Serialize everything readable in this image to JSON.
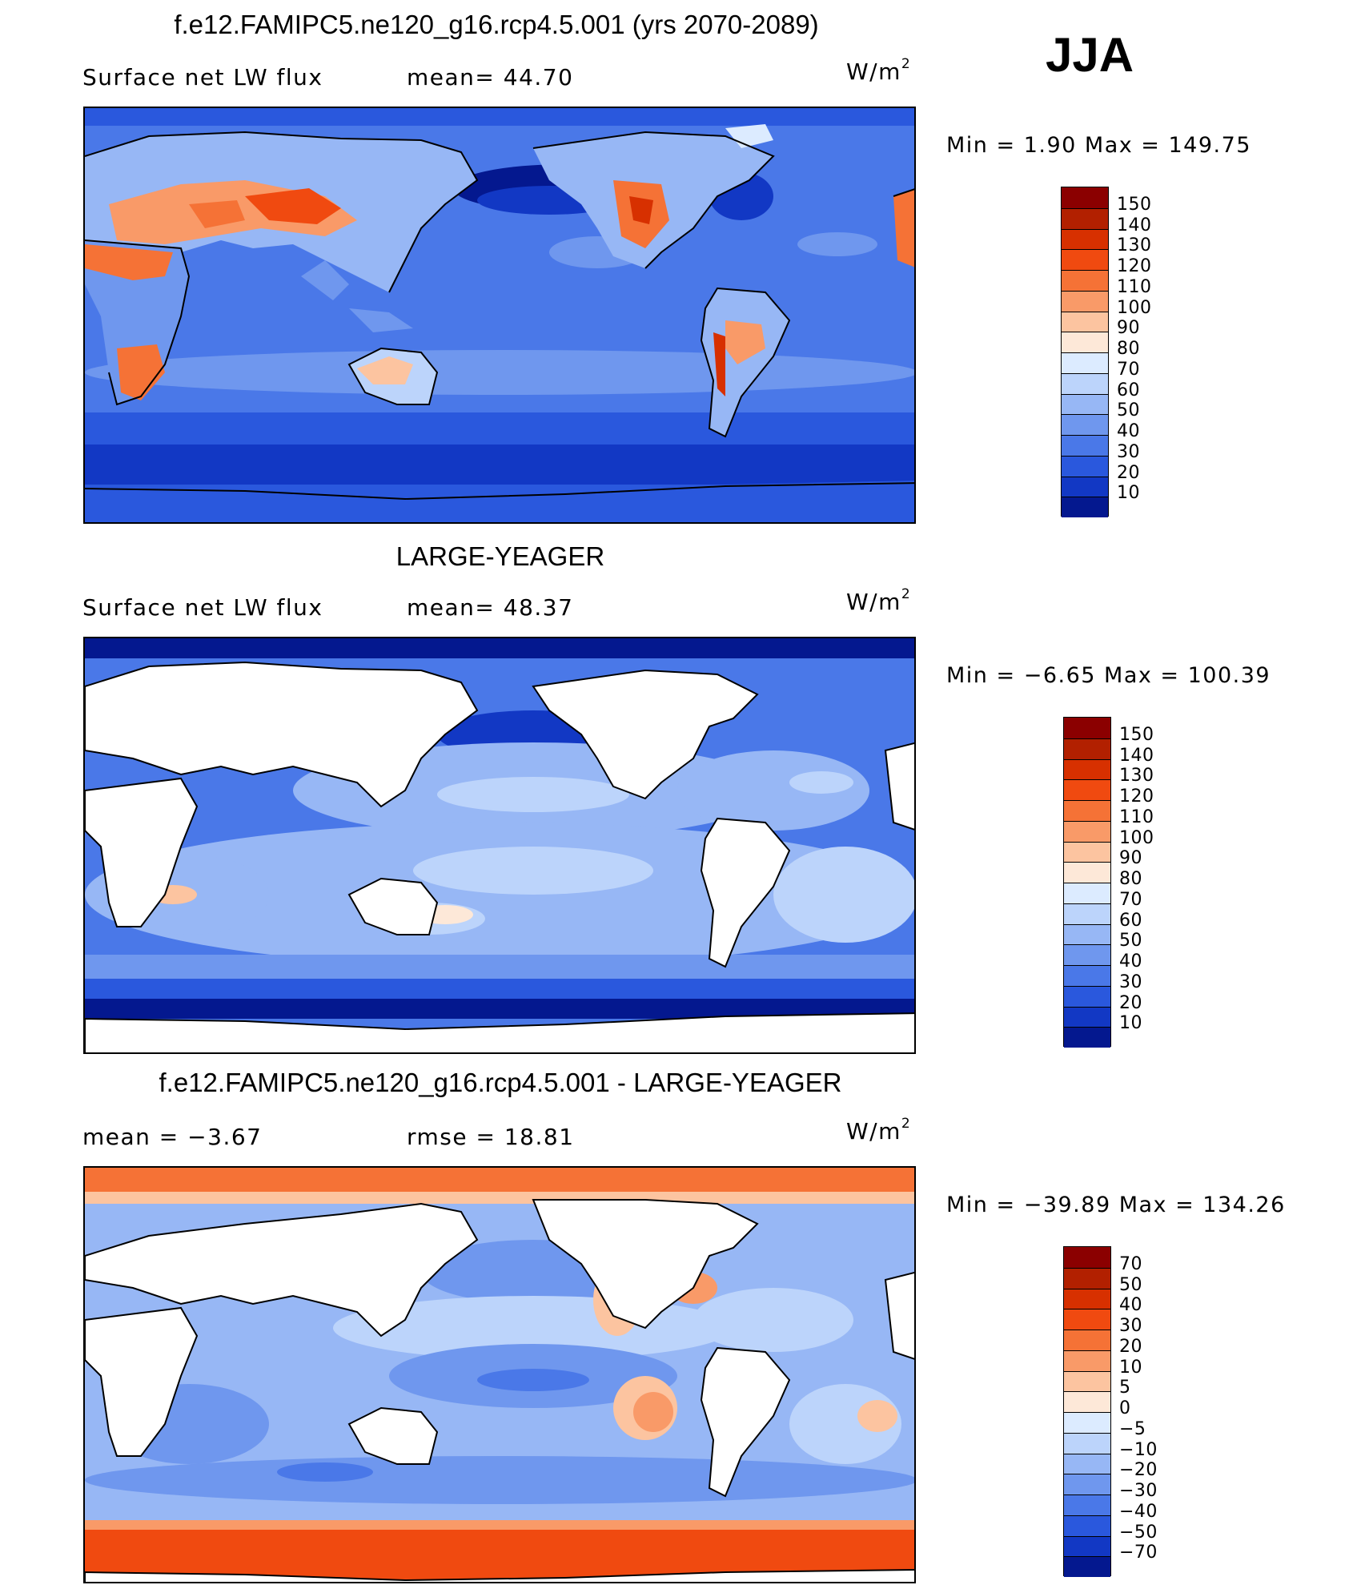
{
  "season": "JJA",
  "panels": [
    {
      "title": "f.e12.FAMIPC5.ne120_g16.rcp4.5.001 (yrs 2070-2089)",
      "left_text": "Surface  net  LW  flux",
      "mid_text": "mean=   44.70",
      "units_base": "W/m",
      "units_exp": "2",
      "minmax": "Min  =     1.90  Max  =  149.75",
      "field": "surface-net-lw-flux-model",
      "land_masked": false,
      "levels": [
        "150",
        "140",
        "130",
        "120",
        "110",
        "100",
        "90",
        "80",
        "70",
        "60",
        "50",
        "40",
        "30",
        "20",
        "10"
      ],
      "colors": [
        "#8b0000",
        "#b22000",
        "#d73000",
        "#f04a10",
        "#f57236",
        "#f99a68",
        "#fcc4a0",
        "#fde8d8",
        "#dcebff",
        "#bcd4fb",
        "#97b7f5",
        "#6f97ee",
        "#4a78e8",
        "#2a58dd",
        "#1238c4",
        "#04188f"
      ]
    },
    {
      "title": "LARGE-YEAGER",
      "left_text": "Surface  net  LW  flux",
      "mid_text": "mean=   48.37",
      "units_base": "W/m",
      "units_exp": "2",
      "minmax": "Min  =    −6.65  Max  =  100.39",
      "field": "surface-net-lw-flux-obs",
      "land_masked": true,
      "levels": [
        "150",
        "140",
        "130",
        "120",
        "110",
        "100",
        "90",
        "80",
        "70",
        "60",
        "50",
        "40",
        "30",
        "20",
        "10"
      ],
      "colors": [
        "#8b0000",
        "#b22000",
        "#d73000",
        "#f04a10",
        "#f57236",
        "#f99a68",
        "#fcc4a0",
        "#fde8d8",
        "#dcebff",
        "#bcd4fb",
        "#97b7f5",
        "#6f97ee",
        "#4a78e8",
        "#2a58dd",
        "#1238c4",
        "#04188f"
      ]
    },
    {
      "title": "f.e12.FAMIPC5.ne120_g16.rcp4.5.001 - LARGE-YEAGER",
      "left_text": "mean  =    −3.67",
      "mid_text": "rmse  =    18.81",
      "units_base": "W/m",
      "units_exp": "2",
      "minmax": "Min  = −39.89  Max  =  134.26",
      "field": "surface-net-lw-flux-difference",
      "land_masked": true,
      "levels": [
        "70",
        "50",
        "40",
        "30",
        "20",
        "10",
        "5",
        "0",
        "−5",
        "−10",
        "−20",
        "−30",
        "−40",
        "−50",
        "−70"
      ],
      "colors": [
        "#8b0000",
        "#b22000",
        "#d73000",
        "#f04a10",
        "#f57236",
        "#f99a68",
        "#fcc4a0",
        "#fde8d8",
        "#dcebff",
        "#bcd4fb",
        "#97b7f5",
        "#6f97ee",
        "#4a78e8",
        "#2a58dd",
        "#1238c4",
        "#04188f"
      ]
    }
  ]
}
